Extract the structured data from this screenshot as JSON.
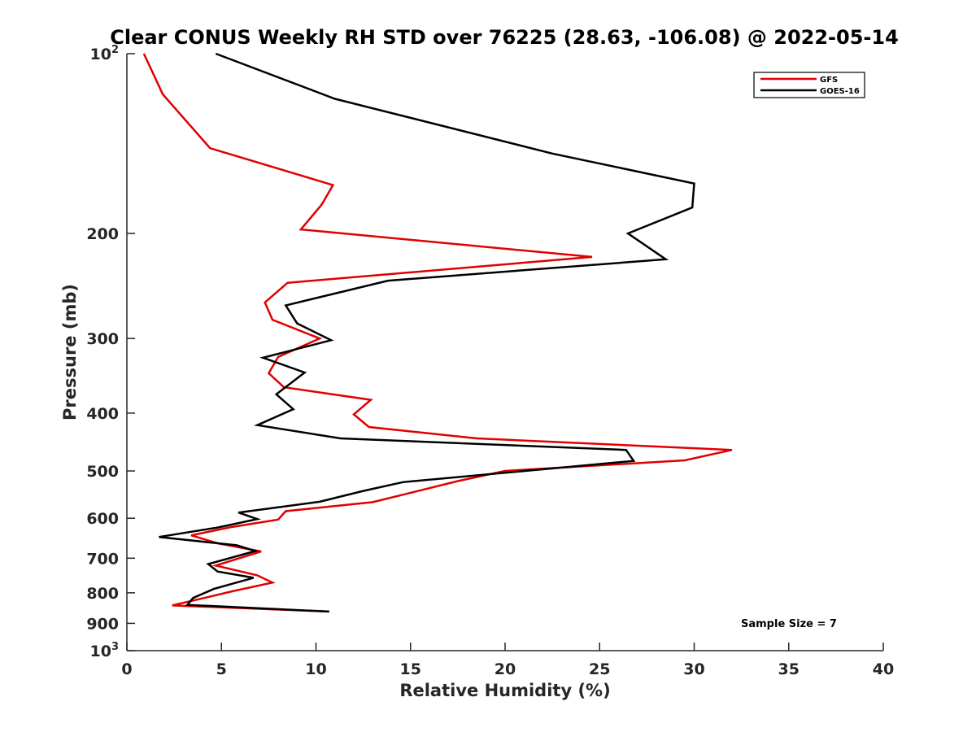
{
  "chart_data": {
    "type": "line",
    "title": "Clear CONUS Weekly RH STD over 76225 (28.63, -106.08) @ 2022-05-14",
    "xlabel": "Relative Humidity (%)",
    "ylabel": "Pressure (mb)",
    "xlim": [
      0,
      40
    ],
    "ylim": [
      100,
      1000
    ],
    "y_scale": "log",
    "y_reversed": true,
    "x_ticks": [
      "0",
      "5",
      "10",
      "15",
      "20",
      "25",
      "30",
      "35",
      "40"
    ],
    "y_ticks": [
      {
        "value": 100,
        "label": "10",
        "sup": "2"
      },
      {
        "value": 200,
        "label": "200",
        "sup": ""
      },
      {
        "value": 300,
        "label": "300",
        "sup": ""
      },
      {
        "value": 400,
        "label": "400",
        "sup": ""
      },
      {
        "value": 500,
        "label": "500",
        "sup": ""
      },
      {
        "value": 600,
        "label": "600",
        "sup": ""
      },
      {
        "value": 700,
        "label": "700",
        "sup": ""
      },
      {
        "value": 800,
        "label": "800",
        "sup": ""
      },
      {
        "value": 900,
        "label": "900",
        "sup": ""
      },
      {
        "value": 1000,
        "label": "10",
        "sup": "3"
      }
    ],
    "grid": false,
    "legend_position": "top-right",
    "annotation": "Sample Size = 7",
    "series": [
      {
        "name": "GFS",
        "color": "#e00000",
        "points": [
          [
            0.9,
            100
          ],
          [
            1.9,
            117
          ],
          [
            4.4,
            144
          ],
          [
            10.9,
            166
          ],
          [
            10.3,
            179
          ],
          [
            9.2,
            197
          ],
          [
            24.6,
            219
          ],
          [
            8.5,
            242
          ],
          [
            7.3,
            261
          ],
          [
            7.7,
            279
          ],
          [
            10.2,
            300
          ],
          [
            8.0,
            322
          ],
          [
            7.5,
            343
          ],
          [
            8.3,
            362
          ],
          [
            12.9,
            380
          ],
          [
            12.0,
            402
          ],
          [
            12.8,
            422
          ],
          [
            18.5,
            441
          ],
          [
            32.0,
            461
          ],
          [
            29.5,
            480
          ],
          [
            20.0,
            500
          ],
          [
            17.5,
            520
          ],
          [
            14.5,
            549
          ],
          [
            13.0,
            564
          ],
          [
            8.4,
            584
          ],
          [
            8.0,
            603
          ],
          [
            5.5,
            621
          ],
          [
            3.4,
            641
          ],
          [
            4.8,
            661
          ],
          [
            7.1,
            682
          ],
          [
            4.7,
            720
          ],
          [
            6.9,
            748
          ],
          [
            7.7,
            769
          ],
          [
            5.6,
            795
          ],
          [
            2.4,
            840
          ],
          [
            10.7,
            860
          ]
        ]
      },
      {
        "name": "GOES-16",
        "color": "#000000",
        "points": [
          [
            4.7,
            100
          ],
          [
            11.0,
            119
          ],
          [
            22.5,
            147
          ],
          [
            30.0,
            165
          ],
          [
            29.9,
            181
          ],
          [
            26.5,
            200
          ],
          [
            28.5,
            221
          ],
          [
            13.8,
            240
          ],
          [
            8.4,
            264
          ],
          [
            9.0,
            283
          ],
          [
            10.8,
            302
          ],
          [
            7.2,
            323
          ],
          [
            9.4,
            342
          ],
          [
            7.9,
            372
          ],
          [
            8.8,
            394
          ],
          [
            6.9,
            419
          ],
          [
            11.3,
            441
          ],
          [
            26.4,
            461
          ],
          [
            26.8,
            481
          ],
          [
            14.6,
            522
          ],
          [
            12.5,
            540
          ],
          [
            10.2,
            563
          ],
          [
            5.9,
            587
          ],
          [
            6.9,
            602
          ],
          [
            4.8,
            622
          ],
          [
            1.7,
            645
          ],
          [
            5.8,
            666
          ],
          [
            6.8,
            681
          ],
          [
            4.3,
            716
          ],
          [
            4.8,
            737
          ],
          [
            6.7,
            755
          ],
          [
            4.6,
            788
          ],
          [
            3.5,
            816
          ],
          [
            3.2,
            838
          ],
          [
            10.7,
            860
          ]
        ]
      }
    ]
  }
}
